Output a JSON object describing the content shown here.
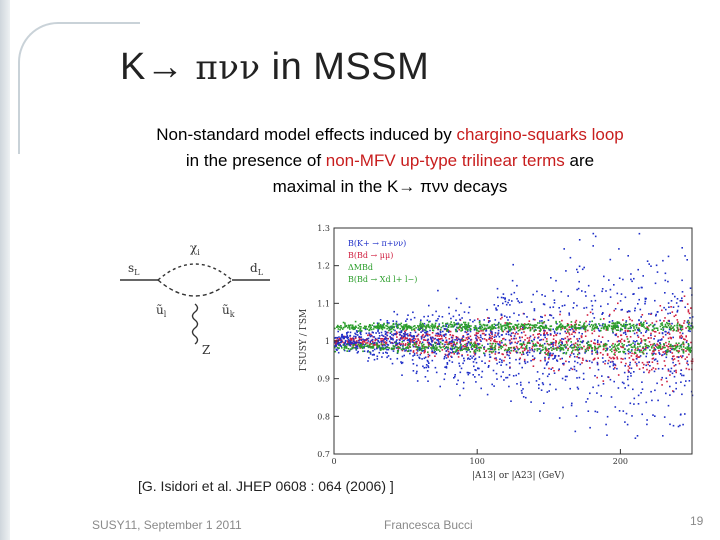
{
  "slide": {
    "title_prefix": "K",
    "title_arrow": "→",
    "title_greek": "πνν",
    "title_suffix": "in MSSM",
    "desc": {
      "part1": "Non-standard model effects induced by ",
      "part1_hl": "chargino-squarks loop",
      "part2": "in the presence of ",
      "part2_hl": "non-MFV up-type trilinear terms",
      "part2_end": " are",
      "part3": "maximal in the K→ πνν decays"
    },
    "citation": "[G. Isidori et al. JHEP 0608 : 064 (2006) ]",
    "footer_left": "SUSY11, September 1 2011",
    "footer_center": "Francesca Bucci",
    "page_number": "19"
  },
  "diagram": {
    "labels": {
      "in": "s",
      "in_sub": "L",
      "out": "d",
      "out_sub": "L",
      "loop": "χ",
      "loop_sub": "i",
      "left_squark": "ũ",
      "left_sub": "l",
      "right_squark": "ũ",
      "right_sub": "k",
      "boson": "Z"
    }
  },
  "chart_data": {
    "type": "scatter",
    "xlabel": "|A13|  or  |A23|  (GeV)",
    "ylabel": "ΓSUSY / ΓSM",
    "xlim": [
      0,
      250
    ],
    "ylim": [
      0.7,
      1.3
    ],
    "x_ticks": [
      "0",
      "100",
      "200"
    ],
    "y_ticks": [
      "0.7",
      "0.8",
      "0.9",
      "1",
      "1.1",
      "1.2",
      "1.3"
    ],
    "legend_position": "top-left",
    "series": [
      {
        "name": "B(K+ → π+νν)",
        "color": "#1f2fc8",
        "spread_at_xmax": 0.3
      },
      {
        "name": "B(Bd → μμ)",
        "color": "#d02040",
        "spread_at_xmax": 0.12
      },
      {
        "name": "ΔMBd",
        "color": "#2a9d2a",
        "spread_at_xmax": 0.01
      },
      {
        "name": "B(Bd → Xd l+ l−)",
        "color": "#2a9d2a",
        "spread_at_xmax": 0.02
      }
    ]
  }
}
